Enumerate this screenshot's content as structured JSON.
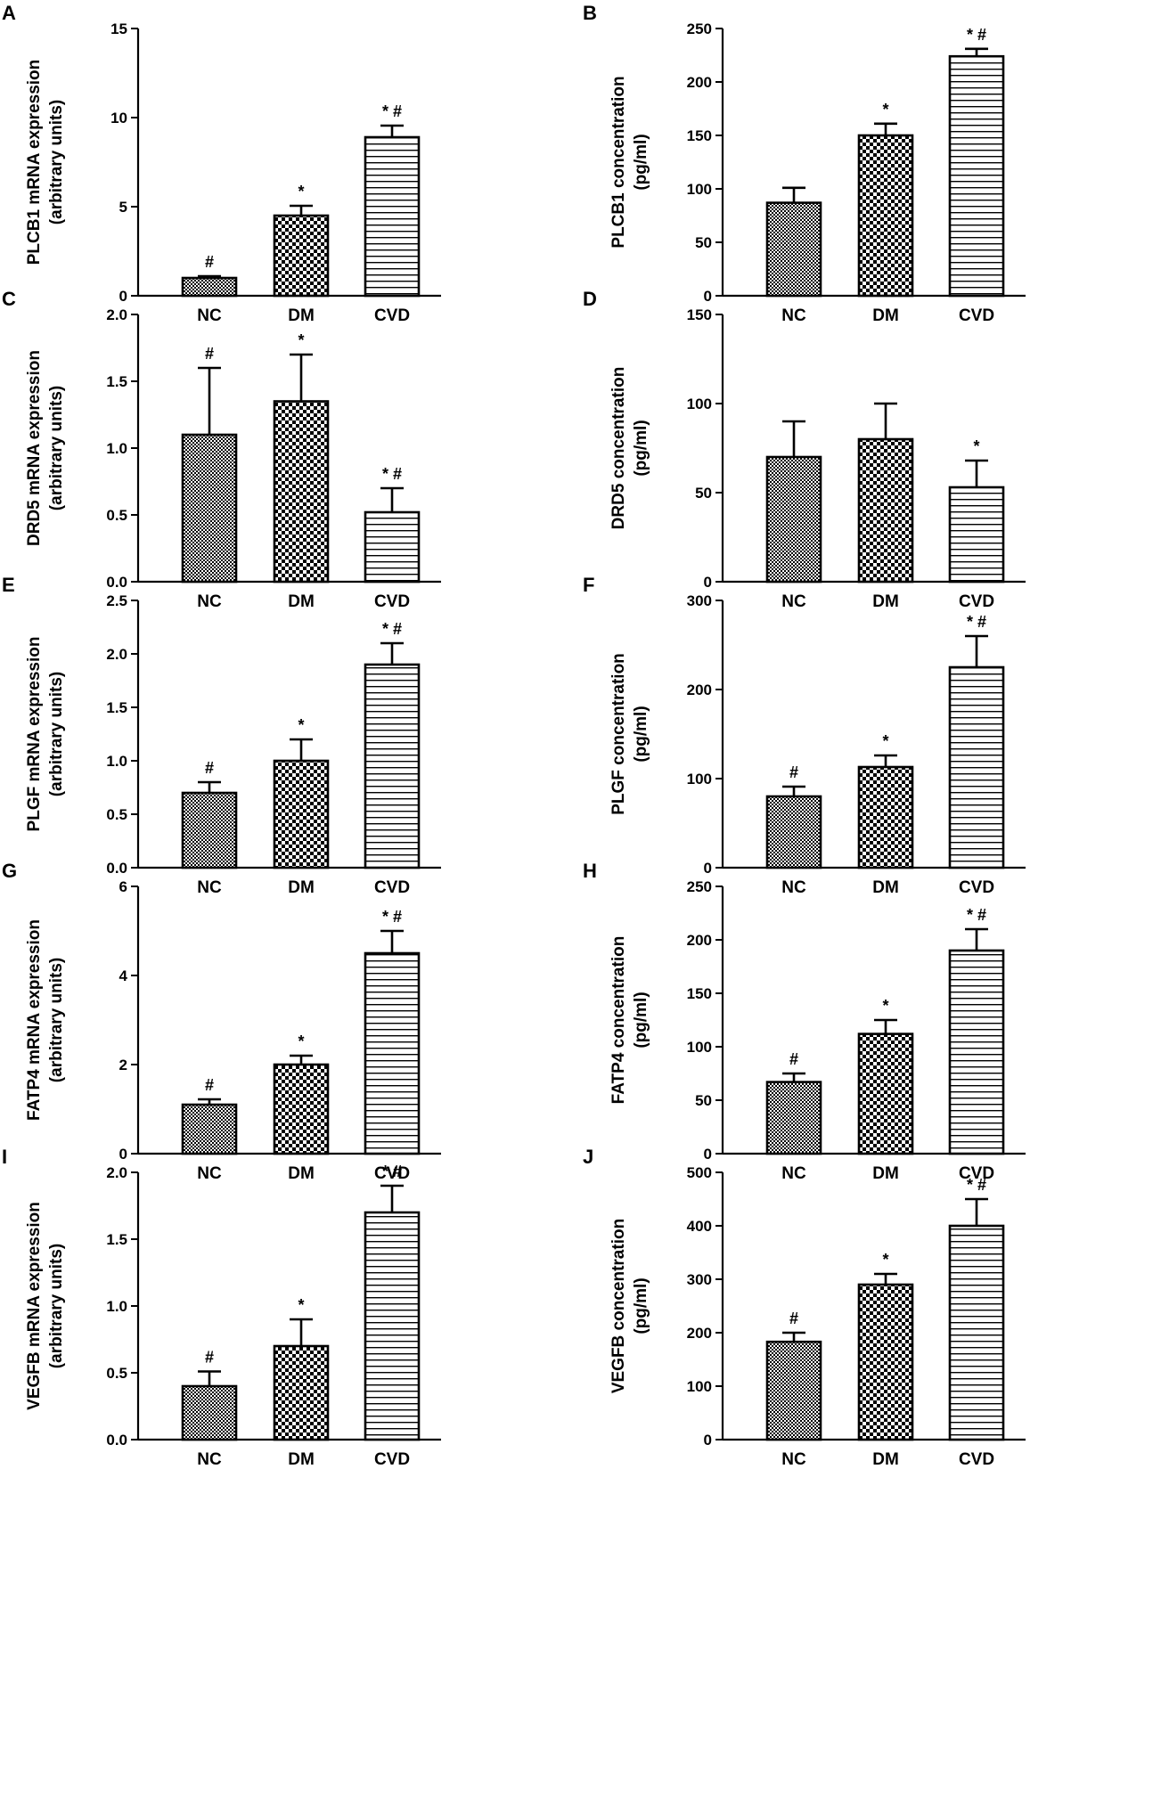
{
  "figure": {
    "categories": [
      "NC",
      "DM",
      "CVD"
    ],
    "patterns": [
      "fine-check",
      "coarse-check",
      "horizontal-lines"
    ],
    "colors": {
      "stroke": "#000000",
      "background": "#ffffff"
    }
  },
  "chart_data": [
    {
      "panel": "A",
      "type": "bar",
      "ylabel": [
        "PLCB1 mRNA expression",
        "(arbitrary units)"
      ],
      "ylim": [
        0,
        15
      ],
      "yticks": [
        0,
        5,
        10,
        15
      ],
      "ytick_labels": [
        "0",
        "5",
        "10",
        "15"
      ],
      "categories": [
        "NC",
        "DM",
        "CVD"
      ],
      "values": [
        1.0,
        4.5,
        8.9
      ],
      "errors": [
        0.1,
        0.55,
        0.65
      ],
      "annotations": [
        "#",
        "*",
        "* #"
      ]
    },
    {
      "panel": "B",
      "type": "bar",
      "ylabel": [
        "PLCB1 concentration",
        "(pg/ml)"
      ],
      "ylim": [
        0,
        250
      ],
      "yticks": [
        0,
        50,
        100,
        150,
        200,
        250
      ],
      "ytick_labels": [
        "0",
        "50",
        "100",
        "150",
        "200",
        "250"
      ],
      "categories": [
        "NC",
        "DM",
        "CVD"
      ],
      "values": [
        87,
        150,
        224
      ],
      "errors": [
        14,
        11,
        7
      ],
      "annotations": [
        "",
        "*",
        "* #"
      ]
    },
    {
      "panel": "C",
      "type": "bar",
      "ylabel": [
        "DRD5 mRNA expression",
        "(arbitrary units)"
      ],
      "ylim": [
        0,
        2.0
      ],
      "yticks": [
        0,
        0.5,
        1.0,
        1.5,
        2.0
      ],
      "ytick_labels": [
        "0.0",
        "0.5",
        "1.0",
        "1.5",
        "2.0"
      ],
      "categories": [
        "NC",
        "DM",
        "CVD"
      ],
      "values": [
        1.1,
        1.35,
        0.52
      ],
      "errors": [
        0.5,
        0.35,
        0.18
      ],
      "annotations": [
        "#",
        "*",
        "* #"
      ]
    },
    {
      "panel": "D",
      "type": "bar",
      "ylabel": [
        "DRD5 concentration",
        "(pg/ml)"
      ],
      "ylim": [
        0,
        150
      ],
      "yticks": [
        0,
        50,
        100,
        150
      ],
      "ytick_labels": [
        "0",
        "50",
        "100",
        "150"
      ],
      "categories": [
        "NC",
        "DM",
        "CVD"
      ],
      "values": [
        70,
        80,
        53
      ],
      "errors": [
        20,
        20,
        15
      ],
      "annotations": [
        "",
        "",
        "*"
      ]
    },
    {
      "panel": "E",
      "type": "bar",
      "ylabel": [
        "PLGF mRNA expression",
        "(arbitrary units)"
      ],
      "ylim": [
        0,
        2.5
      ],
      "yticks": [
        0,
        0.5,
        1.0,
        1.5,
        2.0,
        2.5
      ],
      "ytick_labels": [
        "0.0",
        "0.5",
        "1.0",
        "1.5",
        "2.0",
        "2.5"
      ],
      "categories": [
        "NC",
        "DM",
        "CVD"
      ],
      "values": [
        0.7,
        1.0,
        1.9
      ],
      "errors": [
        0.1,
        0.2,
        0.2
      ],
      "annotations": [
        "#",
        "*",
        "* #"
      ]
    },
    {
      "panel": "F",
      "type": "bar",
      "ylabel": [
        "PLGF concentration",
        "(pg/ml)"
      ],
      "ylim": [
        0,
        300
      ],
      "yticks": [
        0,
        100,
        200,
        300
      ],
      "ytick_labels": [
        "0",
        "100",
        "200",
        "300"
      ],
      "categories": [
        "NC",
        "DM",
        "CVD"
      ],
      "values": [
        80,
        113,
        225
      ],
      "errors": [
        11,
        13,
        35
      ],
      "annotations": [
        "#",
        "*",
        "* #"
      ]
    },
    {
      "panel": "G",
      "type": "bar",
      "ylabel": [
        "FATP4 mRNA expression",
        "(arbitrary units)"
      ],
      "ylim": [
        0,
        6
      ],
      "yticks": [
        0,
        2,
        4,
        6
      ],
      "ytick_labels": [
        "0",
        "2",
        "4",
        "6"
      ],
      "categories": [
        "NC",
        "DM",
        "CVD"
      ],
      "values": [
        1.1,
        2.0,
        4.5
      ],
      "errors": [
        0.12,
        0.2,
        0.5
      ],
      "annotations": [
        "#",
        "*",
        "* #"
      ]
    },
    {
      "panel": "H",
      "type": "bar",
      "ylabel": [
        "FATP4 concentration",
        "(pg/ml)"
      ],
      "ylim": [
        0,
        250
      ],
      "yticks": [
        0,
        50,
        100,
        150,
        200,
        250
      ],
      "ytick_labels": [
        "0",
        "50",
        "100",
        "150",
        "200",
        "250"
      ],
      "categories": [
        "NC",
        "DM",
        "CVD"
      ],
      "values": [
        67,
        112,
        190
      ],
      "errors": [
        8,
        13,
        20
      ],
      "annotations": [
        "#",
        "*",
        "* #"
      ]
    },
    {
      "panel": "I",
      "type": "bar",
      "ylabel": [
        "VEGFB mRNA expression",
        "(arbitrary units)"
      ],
      "ylim": [
        0,
        2.0
      ],
      "yticks": [
        0,
        0.5,
        1.0,
        1.5,
        2.0
      ],
      "ytick_labels": [
        "0.0",
        "0.5",
        "1.0",
        "1.5",
        "2.0"
      ],
      "categories": [
        "NC",
        "DM",
        "CVD"
      ],
      "values": [
        0.4,
        0.7,
        1.7
      ],
      "errors": [
        0.11,
        0.2,
        0.2
      ],
      "annotations": [
        "#",
        "*",
        "* #"
      ]
    },
    {
      "panel": "J",
      "type": "bar",
      "ylabel": [
        "VEGFB concentration",
        "(pg/ml)"
      ],
      "ylim": [
        0,
        500
      ],
      "yticks": [
        0,
        100,
        200,
        300,
        400,
        500
      ],
      "ytick_labels": [
        "0",
        "100",
        "200",
        "300",
        "400",
        "500"
      ],
      "categories": [
        "NC",
        "DM",
        "CVD"
      ],
      "values": [
        183,
        290,
        400
      ],
      "errors": [
        17,
        20,
        50
      ],
      "annotations": [
        "#",
        "*",
        "* #"
      ]
    }
  ]
}
